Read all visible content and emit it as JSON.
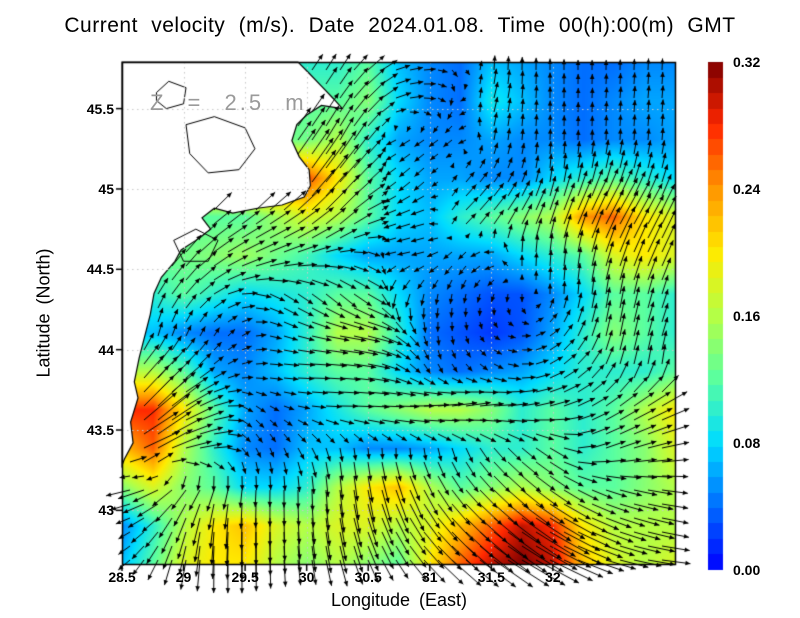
{
  "title": "Current velocity (m/s). Date 2024.01.08. Time 00(h):00(m) GMT",
  "annotation": "Z = 2.5 m",
  "axes": {
    "x": {
      "label": "Longitude (East)",
      "range": [
        28.5,
        33.0
      ],
      "ticks": [
        28.5,
        29,
        29.5,
        30,
        30.5,
        31,
        31.5,
        32
      ],
      "tick_labels": [
        "28.5",
        "29",
        "29.5",
        "30",
        "30.5",
        "31",
        "31.5",
        "32"
      ]
    },
    "y": {
      "label": "Latitude (North)",
      "range": [
        42.66,
        45.79
      ],
      "ticks": [
        43,
        43.5,
        44,
        44.5,
        45,
        45.5
      ],
      "tick_labels": [
        "43",
        "43.5",
        "44",
        "44.5",
        "45",
        "45.5"
      ]
    }
  },
  "colorbar": {
    "min": 0.0,
    "max": 0.32,
    "tick_labels": [
      "0.00",
      "0.08",
      "0.16",
      "0.24",
      "0.32"
    ],
    "tick_values": [
      0.0,
      0.08,
      0.16,
      0.24,
      0.32
    ]
  },
  "colors": {
    "land": "#ffffff",
    "coastline": "#000000",
    "arrows": "#000000",
    "gridlines": "#c8c8c8",
    "frame": "#000000",
    "annotation_gray": "#9a9a9a",
    "jet_stops": [
      [
        0,
        [
          0,
          0,
          255
        ]
      ],
      [
        0.125,
        [
          0,
          110,
          255
        ]
      ],
      [
        0.25,
        [
          0,
          220,
          255
        ]
      ],
      [
        0.375,
        [
          90,
          255,
          160
        ]
      ],
      [
        0.5,
        [
          180,
          255,
          70
        ]
      ],
      [
        0.625,
        [
          255,
          235,
          0
        ]
      ],
      [
        0.75,
        [
          255,
          150,
          0
        ]
      ],
      [
        0.875,
        [
          255,
          40,
          0
        ]
      ],
      [
        1,
        [
          127,
          0,
          0
        ]
      ]
    ]
  },
  "chart_data": {
    "type": "heatmap",
    "subtype": "vector-field-with-speed-heatmap",
    "title": "Current velocity (m/s). Date 2024.01.08. Time 00(h):00(m) GMT",
    "xlabel": "Longitude (East)",
    "ylabel": "Latitude (North)",
    "units": "m/s",
    "xlim": [
      28.5,
      33.0
    ],
    "ylim": [
      42.66,
      45.79
    ],
    "grid_on": true,
    "legend_position": "right-colorbar",
    "lon": [
      28.5,
      28.75,
      29.0,
      29.25,
      29.5,
      29.75,
      30.0,
      30.25,
      30.5,
      30.75,
      31.0,
      31.25,
      31.5,
      31.75,
      32.0,
      32.25,
      32.5,
      32.75,
      33.0
    ],
    "lat": [
      45.79,
      45.55,
      45.31,
      45.07,
      44.82,
      44.58,
      44.34,
      44.1,
      43.86,
      43.62,
      43.38,
      43.14,
      42.9,
      42.66
    ],
    "speed_grid_land_is_minus1": [
      [
        -1,
        -1,
        -1,
        -1,
        -1,
        -1,
        -1,
        0.1,
        0.12,
        0.07,
        0.05,
        0.04,
        0.07,
        0.06,
        0.05,
        0.04,
        0.04,
        0.05,
        0.05
      ],
      [
        -1,
        -1,
        -1,
        -1,
        -1,
        -1,
        -1,
        0.12,
        0.14,
        0.08,
        0.05,
        0.04,
        0.09,
        0.07,
        0.05,
        0.04,
        0.05,
        0.06,
        0.06
      ],
      [
        -1,
        -1,
        -1,
        -1,
        -1,
        -1,
        0.13,
        0.16,
        0.1,
        0.06,
        0.05,
        0.05,
        0.06,
        0.05,
        0.05,
        0.04,
        0.05,
        0.05,
        0.06
      ],
      [
        -1,
        -1,
        -1,
        -1,
        -1,
        -1,
        0.27,
        0.2,
        0.12,
        0.08,
        0.06,
        0.06,
        0.05,
        0.05,
        0.08,
        0.1,
        0.12,
        0.1,
        0.08
      ],
      [
        -1,
        -1,
        -1,
        -1,
        0.12,
        0.15,
        0.18,
        0.16,
        0.12,
        0.08,
        0.07,
        0.1,
        0.12,
        0.14,
        0.16,
        0.24,
        0.26,
        0.2,
        0.18
      ],
      [
        -1,
        -1,
        0.13,
        0.14,
        0.15,
        0.13,
        0.11,
        0.08,
        0.06,
        0.06,
        0.06,
        0.06,
        0.06,
        0.08,
        0.1,
        0.12,
        0.18,
        0.2,
        0.18
      ],
      [
        -1,
        0.1,
        0.12,
        0.1,
        0.08,
        0.09,
        0.1,
        0.12,
        0.12,
        0.08,
        0.05,
        0.04,
        0.03,
        0.03,
        0.05,
        0.08,
        0.12,
        0.12,
        0.1
      ],
      [
        -1,
        0.07,
        0.05,
        0.04,
        0.04,
        0.06,
        0.1,
        0.16,
        0.16,
        0.1,
        0.04,
        0.03,
        0.02,
        0.03,
        0.06,
        0.1,
        0.14,
        0.12,
        0.1
      ],
      [
        -1,
        0.16,
        0.12,
        0.06,
        0.05,
        0.07,
        0.1,
        0.12,
        0.12,
        0.08,
        0.05,
        0.04,
        0.05,
        0.06,
        0.08,
        0.1,
        0.1,
        0.1,
        0.12
      ],
      [
        -1,
        0.28,
        0.2,
        0.12,
        0.06,
        0.04,
        0.06,
        0.09,
        0.12,
        0.14,
        0.16,
        0.16,
        0.14,
        0.1,
        0.12,
        0.1,
        0.12,
        0.16,
        0.2
      ],
      [
        0.22,
        0.26,
        0.16,
        0.1,
        0.05,
        0.04,
        0.07,
        0.07,
        0.05,
        0.05,
        0.06,
        0.08,
        0.1,
        0.1,
        0.12,
        0.1,
        0.12,
        0.14,
        0.18
      ],
      [
        0.14,
        0.18,
        0.14,
        0.12,
        0.08,
        0.08,
        0.1,
        0.16,
        0.2,
        0.22,
        0.16,
        0.12,
        0.14,
        0.16,
        0.14,
        0.12,
        0.12,
        0.14,
        0.16
      ],
      [
        0.05,
        0.1,
        0.16,
        0.2,
        0.22,
        0.18,
        0.16,
        0.18,
        0.18,
        0.16,
        0.18,
        0.22,
        0.26,
        0.3,
        0.28,
        0.2,
        0.16,
        0.16,
        0.16
      ],
      [
        0.07,
        0.12,
        0.18,
        0.2,
        0.2,
        0.16,
        0.14,
        0.16,
        0.14,
        0.12,
        0.2,
        0.26,
        0.3,
        0.32,
        0.3,
        0.22,
        0.18,
        0.16,
        0.18
      ]
    ],
    "direction_deg_grid_ccw_from_east": [
      [
        50,
        50,
        50,
        50,
        50,
        50,
        55,
        60,
        40,
        15,
        5,
        300,
        90,
        90,
        90,
        90,
        90,
        88,
        88
      ],
      [
        55,
        55,
        55,
        55,
        55,
        55,
        55,
        55,
        45,
        15,
        350,
        230,
        75,
        85,
        90,
        88,
        85,
        85,
        85
      ],
      [
        55,
        55,
        55,
        55,
        55,
        55,
        55,
        60,
        50,
        210,
        215,
        220,
        80,
        85,
        88,
        88,
        88,
        86,
        85
      ],
      [
        55,
        55,
        55,
        55,
        55,
        55,
        55,
        50,
        45,
        220,
        225,
        50,
        55,
        70,
        85,
        80,
        75,
        75,
        75
      ],
      [
        40,
        40,
        40,
        40,
        40,
        35,
        40,
        45,
        25,
        200,
        195,
        45,
        50,
        60,
        70,
        65,
        60,
        60,
        65
      ],
      [
        50,
        50,
        50,
        35,
        25,
        20,
        15,
        5,
        335,
        190,
        195,
        230,
        200,
        90,
        85,
        80,
        70,
        65,
        65
      ],
      [
        60,
        60,
        50,
        30,
        0,
        330,
        325,
        320,
        330,
        250,
        260,
        260,
        250,
        270,
        90,
        85,
        80,
        75,
        70
      ],
      [
        80,
        80,
        70,
        60,
        30,
        340,
        345,
        350,
        345,
        320,
        270,
        280,
        320,
        0,
        40,
        70,
        80,
        75,
        70
      ],
      [
        50,
        50,
        45,
        35,
        10,
        355,
        0,
        355,
        350,
        330,
        300,
        310,
        330,
        0,
        30,
        45,
        70,
        80,
        85
      ],
      [
        45,
        45,
        30,
        15,
        320,
        330,
        350,
        0,
        358,
        0,
        5,
        10,
        5,
        10,
        15,
        25,
        35,
        30,
        25
      ],
      [
        10,
        30,
        15,
        5,
        300,
        290,
        300,
        280,
        275,
        270,
        280,
        290,
        310,
        320,
        330,
        15,
        20,
        15,
        10
      ],
      [
        190,
        200,
        230,
        250,
        265,
        270,
        270,
        275,
        280,
        290,
        300,
        310,
        315,
        320,
        325,
        335,
        345,
        350,
        355
      ],
      [
        200,
        220,
        250,
        265,
        270,
        270,
        275,
        280,
        290,
        300,
        310,
        315,
        320,
        325,
        330,
        335,
        340,
        345,
        350
      ],
      [
        210,
        240,
        260,
        270,
        270,
        272,
        278,
        285,
        295,
        305,
        315,
        320,
        325,
        330,
        335,
        340,
        345,
        350,
        355
      ]
    ],
    "land_polygon": [
      [
        28.5,
        45.79
      ],
      [
        29.93,
        45.79
      ],
      [
        30.02,
        45.72
      ],
      [
        30.12,
        45.64
      ],
      [
        30.22,
        45.56
      ],
      [
        30.29,
        45.5
      ],
      [
        30.12,
        45.52
      ],
      [
        30.0,
        45.46
      ],
      [
        29.92,
        45.4
      ],
      [
        29.88,
        45.3
      ],
      [
        29.94,
        45.2
      ],
      [
        30.02,
        45.12
      ],
      [
        30.03,
        45.02
      ],
      [
        29.98,
        44.95
      ],
      [
        29.8,
        44.9
      ],
      [
        29.6,
        44.88
      ],
      [
        29.4,
        44.85
      ],
      [
        29.25,
        44.88
      ],
      [
        29.15,
        44.82
      ],
      [
        29.22,
        44.75
      ],
      [
        29.1,
        44.68
      ],
      [
        28.98,
        44.62
      ],
      [
        28.93,
        44.55
      ],
      [
        28.82,
        44.45
      ],
      [
        28.76,
        44.35
      ],
      [
        28.73,
        44.22
      ],
      [
        28.69,
        44.1
      ],
      [
        28.64,
        43.95
      ],
      [
        28.6,
        43.8
      ],
      [
        28.63,
        43.7
      ],
      [
        28.57,
        43.55
      ],
      [
        28.59,
        43.42
      ],
      [
        28.52,
        43.32
      ],
      [
        28.5,
        43.28
      ]
    ],
    "lake_outlines": [
      [
        [
          28.78,
          45.6
        ],
        [
          28.88,
          45.67
        ],
        [
          29.02,
          45.63
        ],
        [
          29.0,
          45.53
        ],
        [
          28.86,
          45.5
        ],
        [
          28.78,
          45.55
        ]
      ],
      [
        [
          29.02,
          45.4
        ],
        [
          29.25,
          45.45
        ],
        [
          29.5,
          45.38
        ],
        [
          29.58,
          45.25
        ],
        [
          29.45,
          45.12
        ],
        [
          29.2,
          45.1
        ],
        [
          29.05,
          45.22
        ]
      ],
      [
        [
          28.92,
          44.68
        ],
        [
          29.1,
          44.75
        ],
        [
          29.28,
          44.68
        ],
        [
          29.2,
          44.55
        ],
        [
          29.0,
          44.55
        ]
      ]
    ]
  }
}
